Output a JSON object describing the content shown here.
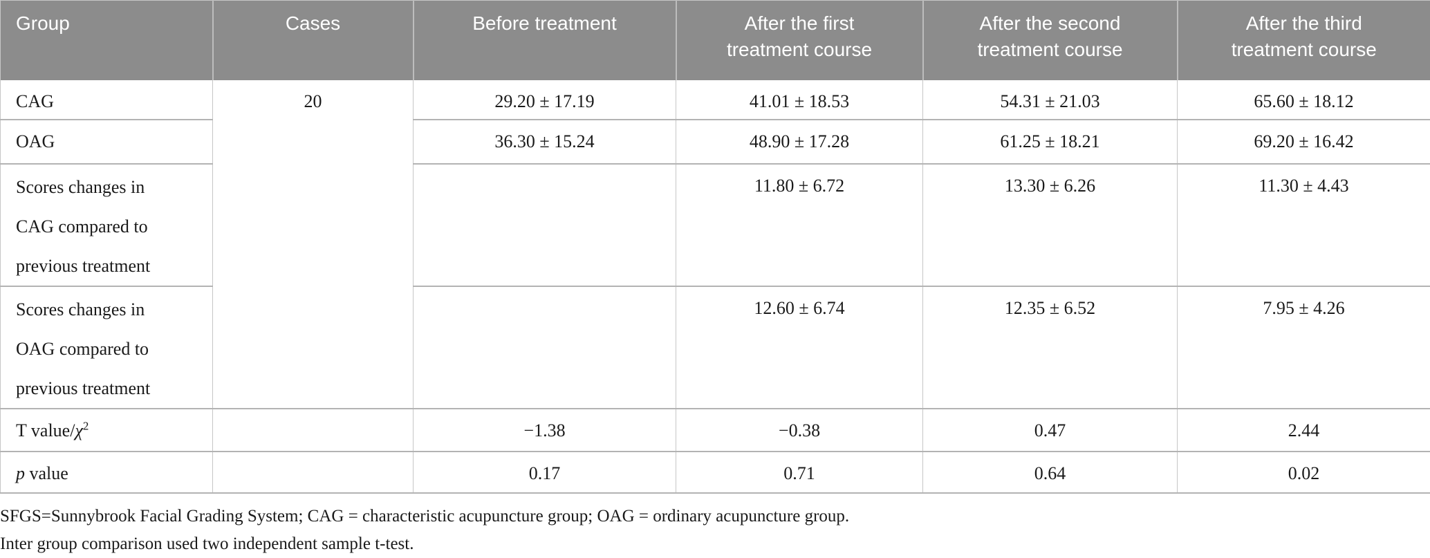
{
  "table": {
    "header": [
      "Group",
      "Cases",
      "Before treatment",
      "After the first\ntreatment course",
      "After the second\ntreatment course",
      "After the third\ntreatment course"
    ],
    "cases_value": "20",
    "rows": [
      {
        "label": "CAG",
        "values": [
          "29.20 ± 17.19",
          "41.01 ± 18.53",
          "54.31 ± 21.03",
          "65.60 ± 18.12"
        ]
      },
      {
        "label": "OAG",
        "values": [
          "36.30 ± 15.24",
          "48.90 ± 17.28",
          "61.25 ± 18.21",
          "69.20 ± 16.42"
        ]
      },
      {
        "label": "Scores changes in\nCAG compared to\nprevious treatment",
        "values": [
          "",
          "11.80 ± 6.72",
          "13.30 ± 6.26",
          "11.30 ± 4.43"
        ]
      },
      {
        "label": "Scores changes in\nOAG compared to\nprevious treatment",
        "values": [
          "",
          "12.60 ± 6.74",
          "12.35 ± 6.52",
          "7.95 ± 4.26"
        ]
      }
    ],
    "stat_row": {
      "label_prefix": "T value/",
      "chi": "χ",
      "sup": "2",
      "values": [
        "−1.38",
        "−0.38",
        "0.47",
        "2.44"
      ]
    },
    "p_row": {
      "p": "p",
      "rest": " value",
      "values": [
        "0.17",
        "0.71",
        "0.64",
        "0.02"
      ]
    }
  },
  "footnotes": {
    "line1": "SFGS=Sunnybrook Facial Grading System; CAG = characteristic acupuncture group; OAG = ordinary acupuncture group.",
    "line2": "Inter group comparison used two independent sample t-test."
  },
  "colors": {
    "header_bg": "#8c8c8c",
    "header_text": "#ffffff",
    "row_border": "#b3b3b3",
    "column_border": "#c6c6c6",
    "body_text": "#1a1a1a"
  }
}
